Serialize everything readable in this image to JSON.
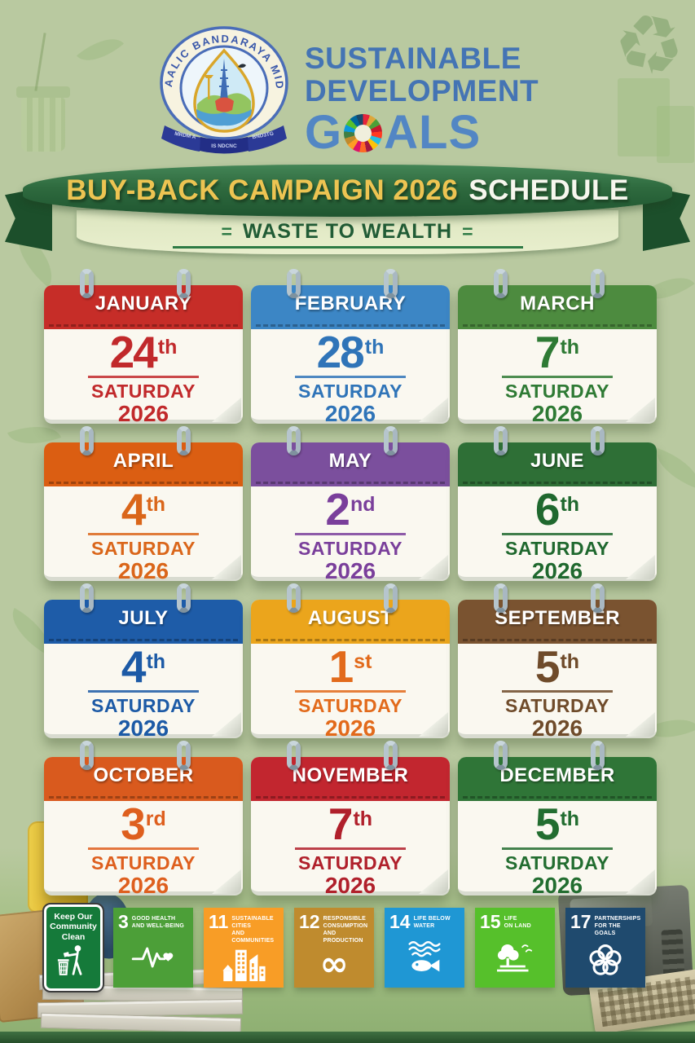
{
  "header": {
    "crest_arc_text": "MAALIC BANDARAYA MID3",
    "crest_ribbon_left": "MRDM A",
    "crest_ribbon_center": "IS NDCNC",
    "crest_ribbon_right": "BND3TG",
    "title_line1": "SUSTAINABLE",
    "title_line2": "DEVELOPMENT",
    "title_line3_prefix": "G",
    "title_line3_suffix": "ALS",
    "wheel_colors": [
      "#E5243B",
      "#DDA63A",
      "#4C9F38",
      "#C5192D",
      "#FF3A21",
      "#26BDE2",
      "#FCC30B",
      "#A21942",
      "#FD6925",
      "#DD1367",
      "#FD9D24",
      "#BF8B2E",
      "#3F7E44",
      "#0A97D9",
      "#56C02B",
      "#00689D",
      "#19486A"
    ]
  },
  "banner": {
    "title_main": "BUY-BACK CAMPAIGN 2026",
    "title_suffix": "SCHEDULE",
    "subtitle": "WASTE TO WEALTH",
    "subtitle_flank": "="
  },
  "calendar": {
    "weekday": "SATURDAY",
    "year": "2026",
    "months": [
      {
        "month": "JANUARY",
        "day": "24",
        "ordinal": "th",
        "header_color": "#C62D28",
        "text_color": "#C1292B"
      },
      {
        "month": "FEBRUARY",
        "day": "28",
        "ordinal": "th",
        "header_color": "#3C86C5",
        "text_color": "#2F74B8"
      },
      {
        "month": "MARCH",
        "day": "7",
        "ordinal": "th",
        "header_color": "#4D8B3F",
        "text_color": "#2E7A34"
      },
      {
        "month": "APRIL",
        "day": "4",
        "ordinal": "th",
        "header_color": "#DB5E12",
        "text_color": "#DA661A"
      },
      {
        "month": "MAY",
        "day": "2",
        "ordinal": "nd",
        "header_color": "#7B4F9D",
        "text_color": "#7A3F9B"
      },
      {
        "month": "JUNE",
        "day": "6",
        "ordinal": "th",
        "header_color": "#2E6F36",
        "text_color": "#1F682E"
      },
      {
        "month": "JULY",
        "day": "4",
        "ordinal": "th",
        "header_color": "#1E5CA8",
        "text_color": "#1C5AA6"
      },
      {
        "month": "AUGUST",
        "day": "1",
        "ordinal": "st",
        "header_color": "#EBA51C",
        "text_color": "#E26A1B"
      },
      {
        "month": "SEPTEMBER",
        "day": "5",
        "ordinal": "th",
        "header_color": "#7A5330",
        "text_color": "#6F4B2A"
      },
      {
        "month": "OCTOBER",
        "day": "3",
        "ordinal": "rd",
        "header_color": "#D95A1E",
        "text_color": "#DE5F1E"
      },
      {
        "month": "NOVEMBER",
        "day": "7",
        "ordinal": "th",
        "header_color": "#C2262F",
        "text_color": "#B0202B"
      },
      {
        "month": "DECEMBER",
        "day": "5",
        "ordinal": "th",
        "header_color": "#2F7537",
        "text_color": "#226D30"
      }
    ]
  },
  "footer": {
    "sign": {
      "text": "Keep Our\nCommunity\nClean",
      "color": "#157A3A"
    },
    "sdg_tiles": [
      {
        "number": "3",
        "label": "GOOD HEALTH\nAND WELL-BEING",
        "color": "#4C9F38",
        "icon": "heartbeat-icon"
      },
      {
        "number": "11",
        "label": "SUSTAINABLE CITIES\nAND COMMUNITIES",
        "color": "#F89D26",
        "icon": "buildings-icon"
      },
      {
        "number": "12",
        "label": "RESPONSIBLE\nCONSUMPTION\nAND PRODUCTION",
        "color": "#BF8B2E",
        "icon": "infinity-icon"
      },
      {
        "number": "14",
        "label": "LIFE BELOW\nWATER",
        "color": "#1F97D4",
        "icon": "fish-icon"
      },
      {
        "number": "15",
        "label": "LIFE\nON LAND",
        "color": "#56C02B",
        "icon": "tree-icon"
      },
      {
        "number": "17",
        "label": "PARTNERSHIPS\nFOR THE GOALS",
        "color": "#1F4A6E",
        "icon": "circles-icon"
      }
    ]
  },
  "decor": {
    "recycle_glyph": "♻"
  }
}
